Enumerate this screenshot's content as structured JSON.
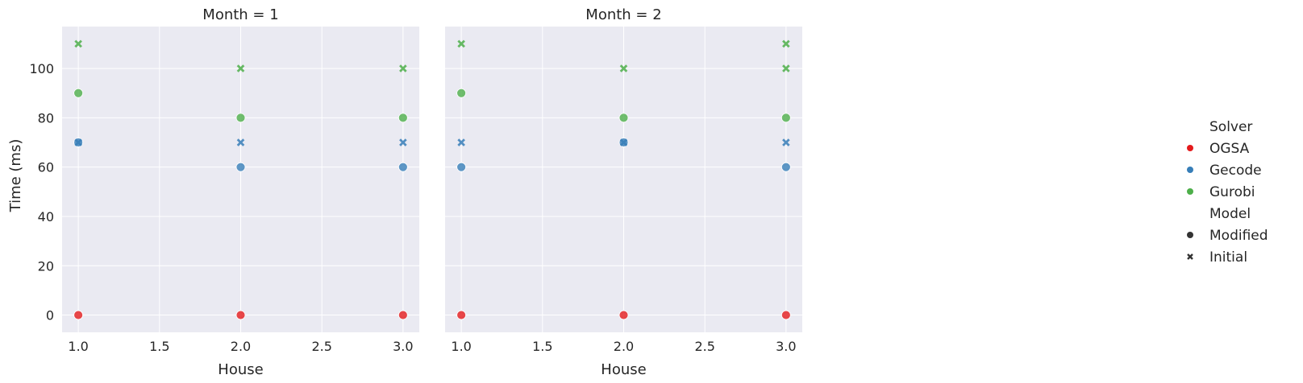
{
  "chart_data": {
    "type": "scatter",
    "panels": [
      {
        "title": "Month = 1",
        "points": [
          {
            "solver": "OGSA",
            "model": "Modified",
            "x": 1.0,
            "y": 0
          },
          {
            "solver": "OGSA",
            "model": "Modified",
            "x": 2.0,
            "y": 0
          },
          {
            "solver": "OGSA",
            "model": "Modified",
            "x": 3.0,
            "y": 0
          },
          {
            "solver": "Gecode",
            "model": "Modified",
            "x": 1.0,
            "y": 70
          },
          {
            "solver": "Gecode",
            "model": "Initial",
            "x": 1.0,
            "y": 70
          },
          {
            "solver": "Gecode",
            "model": "Modified",
            "x": 2.0,
            "y": 60
          },
          {
            "solver": "Gecode",
            "model": "Initial",
            "x": 2.0,
            "y": 70
          },
          {
            "solver": "Gecode",
            "model": "Modified",
            "x": 3.0,
            "y": 60
          },
          {
            "solver": "Gecode",
            "model": "Initial",
            "x": 3.0,
            "y": 70
          },
          {
            "solver": "Gurobi",
            "model": "Modified",
            "x": 1.0,
            "y": 90
          },
          {
            "solver": "Gurobi",
            "model": "Initial",
            "x": 1.0,
            "y": 110
          },
          {
            "solver": "Gurobi",
            "model": "Modified",
            "x": 2.0,
            "y": 80
          },
          {
            "solver": "Gurobi",
            "model": "Initial",
            "x": 2.0,
            "y": 100
          },
          {
            "solver": "Gurobi",
            "model": "Modified",
            "x": 3.0,
            "y": 80
          },
          {
            "solver": "Gurobi",
            "model": "Initial",
            "x": 3.0,
            "y": 100
          }
        ]
      },
      {
        "title": "Month = 2",
        "points": [
          {
            "solver": "OGSA",
            "model": "Modified",
            "x": 1.0,
            "y": 0
          },
          {
            "solver": "OGSA",
            "model": "Modified",
            "x": 2.0,
            "y": 0
          },
          {
            "solver": "OGSA",
            "model": "Modified",
            "x": 3.0,
            "y": 0
          },
          {
            "solver": "Gecode",
            "model": "Modified",
            "x": 1.0,
            "y": 60
          },
          {
            "solver": "Gecode",
            "model": "Initial",
            "x": 1.0,
            "y": 70
          },
          {
            "solver": "Gecode",
            "model": "Modified",
            "x": 2.0,
            "y": 70
          },
          {
            "solver": "Gecode",
            "model": "Initial",
            "x": 2.0,
            "y": 70
          },
          {
            "solver": "Gecode",
            "model": "Modified",
            "x": 3.0,
            "y": 60
          },
          {
            "solver": "Gecode",
            "model": "Initial",
            "x": 3.0,
            "y": 70
          },
          {
            "solver": "Gurobi",
            "model": "Modified",
            "x": 1.0,
            "y": 90
          },
          {
            "solver": "Gurobi",
            "model": "Initial",
            "x": 1.0,
            "y": 110
          },
          {
            "solver": "Gurobi",
            "model": "Modified",
            "x": 2.0,
            "y": 80
          },
          {
            "solver": "Gurobi",
            "model": "Initial",
            "x": 2.0,
            "y": 100
          },
          {
            "solver": "Gurobi",
            "model": "Modified",
            "x": 3.0,
            "y": 80
          },
          {
            "solver": "Gurobi",
            "model": "Initial",
            "x": 3.0,
            "y": 100
          },
          {
            "solver": "Gurobi",
            "model": "Initial",
            "x": 3.0,
            "y": 110
          }
        ]
      }
    ],
    "xlabel": "House",
    "ylabel": "Time (ms)",
    "xlim": [
      0.9,
      3.1
    ],
    "ylim": [
      -7,
      117
    ],
    "xticks": [
      "1.0",
      "1.5",
      "2.0",
      "2.5",
      "3.0"
    ],
    "yticks": [
      "0",
      "20",
      "40",
      "60",
      "80",
      "100"
    ],
    "grid": true,
    "legend": {
      "placement": "right",
      "hue_title": "Solver",
      "hue": [
        {
          "name": "OGSA",
          "color": "#e41a1c"
        },
        {
          "name": "Gecode",
          "color": "#377eb8"
        },
        {
          "name": "Gurobi",
          "color": "#4daf4a"
        }
      ],
      "style_title": "Model",
      "styles": [
        {
          "name": "Modified",
          "marker": "circle"
        },
        {
          "name": "Initial",
          "marker": "x"
        }
      ]
    },
    "colors": {
      "panel_bg": "#eaeaf2",
      "grid": "#ffffff",
      "text": "#262626"
    }
  }
}
